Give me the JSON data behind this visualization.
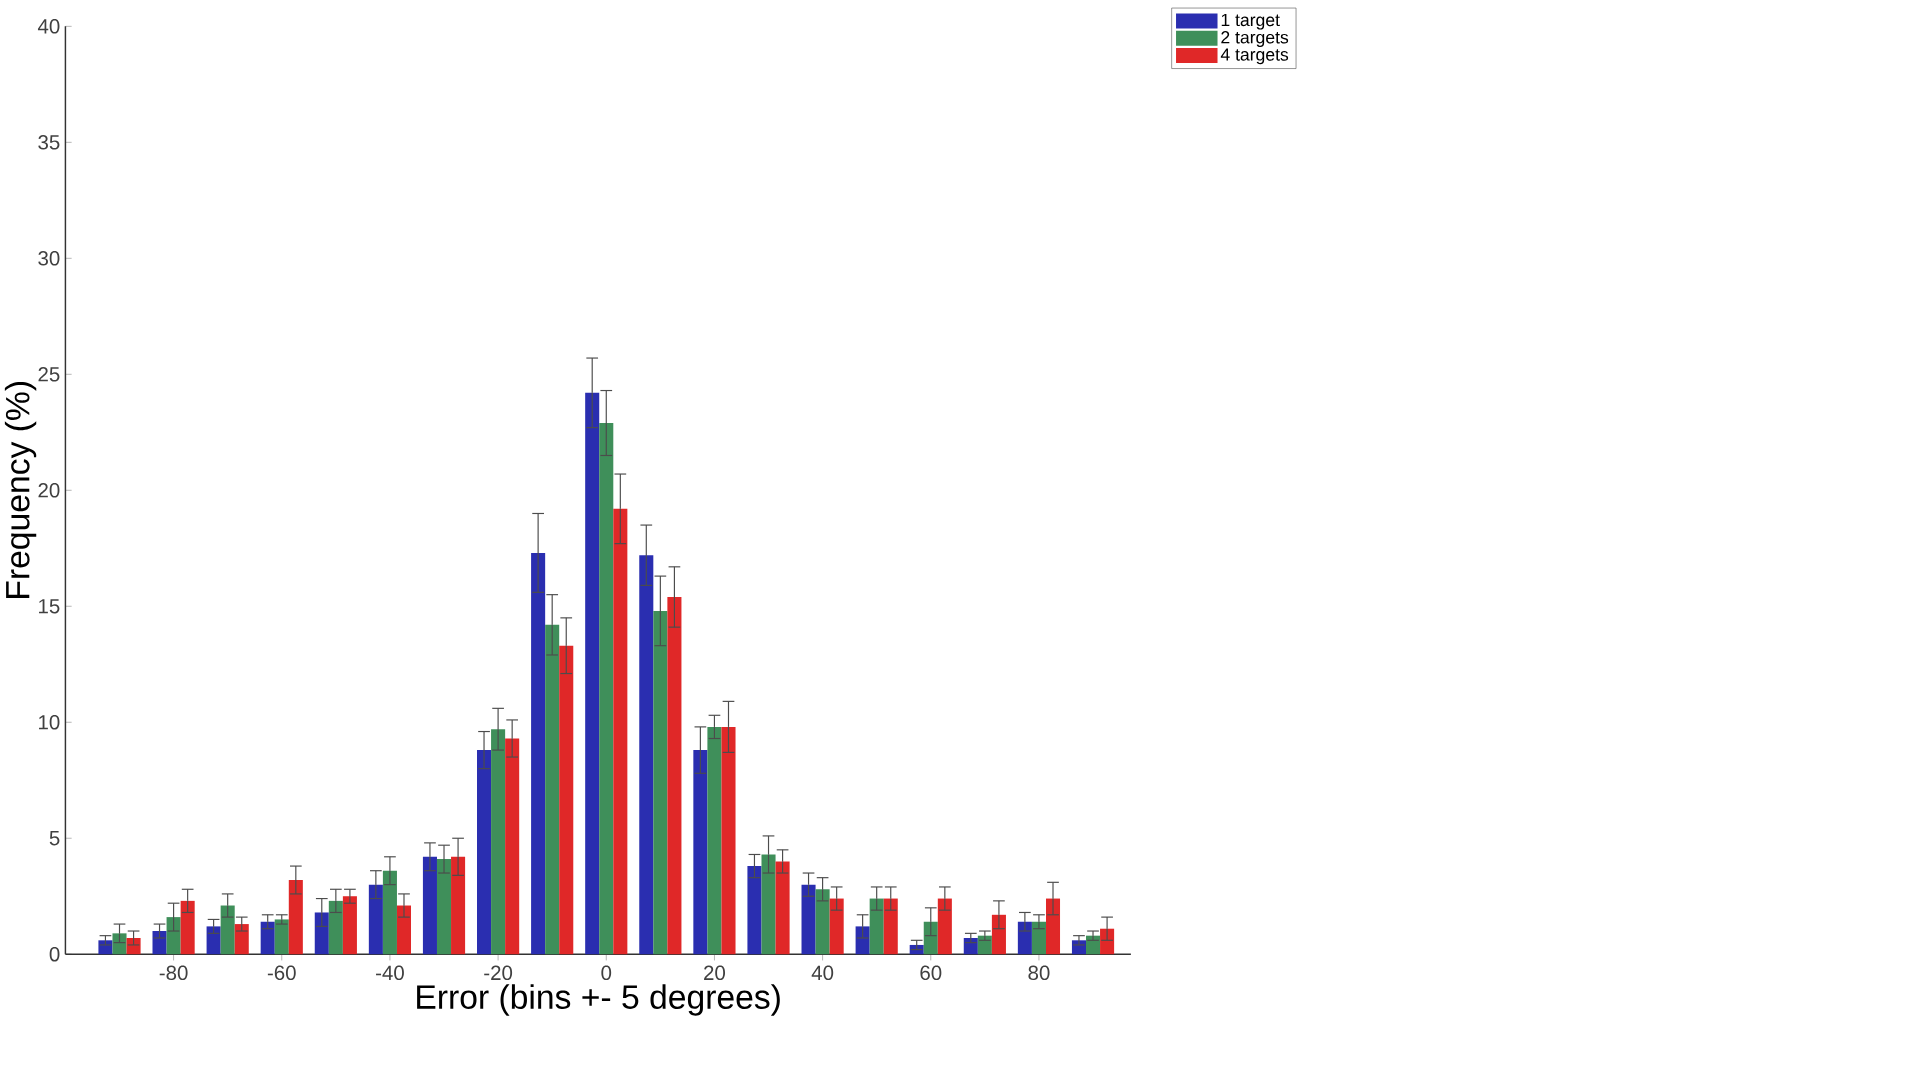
{
  "chart_data": {
    "type": "bar",
    "xlabel": "Error (bins +- 5 degrees)",
    "ylabel": "Frequency (%)",
    "x": [
      -90,
      -80,
      -70,
      -60,
      -50,
      -40,
      -30,
      -20,
      -10,
      0,
      10,
      20,
      30,
      40,
      50,
      60,
      70,
      80,
      90
    ],
    "xlim": [
      -100,
      97
    ],
    "xticks": [
      -80,
      -60,
      -40,
      -20,
      0,
      20,
      40,
      60,
      80
    ],
    "ylim": [
      0,
      40
    ],
    "yticks": [
      0,
      5,
      10,
      15,
      20,
      25,
      30,
      35,
      40
    ],
    "legend": "top right",
    "series": [
      {
        "name": "1 target",
        "color": "#2a2eb0",
        "values": [
          0.6,
          1.0,
          1.2,
          1.4,
          1.8,
          3.0,
          4.2,
          8.8,
          17.3,
          24.2,
          17.2,
          8.8,
          3.8,
          3.0,
          1.2,
          0.4,
          0.7,
          1.4,
          0.6
        ],
        "errors": [
          0.2,
          0.3,
          0.3,
          0.3,
          0.6,
          0.6,
          0.6,
          0.8,
          1.7,
          1.5,
          1.3,
          1.0,
          0.5,
          0.5,
          0.5,
          0.2,
          0.2,
          0.4,
          0.2
        ]
      },
      {
        "name": "2 targets",
        "color": "#3f8f5a",
        "values": [
          0.9,
          1.6,
          2.1,
          1.5,
          2.3,
          3.6,
          4.1,
          9.7,
          14.2,
          22.9,
          14.8,
          9.8,
          4.3,
          2.8,
          2.4,
          1.4,
          0.8,
          1.4,
          0.8
        ],
        "errors": [
          0.4,
          0.6,
          0.5,
          0.2,
          0.5,
          0.6,
          0.6,
          0.9,
          1.3,
          1.4,
          1.5,
          0.5,
          0.8,
          0.5,
          0.5,
          0.6,
          0.2,
          0.3,
          0.2
        ]
      },
      {
        "name": "4 targets",
        "color": "#e02828",
        "values": [
          0.7,
          2.3,
          1.3,
          3.2,
          2.5,
          2.1,
          4.2,
          9.3,
          13.3,
          19.2,
          15.4,
          9.8,
          4.0,
          2.4,
          2.4,
          2.4,
          1.7,
          2.4,
          1.1
        ],
        "errors": [
          0.3,
          0.5,
          0.3,
          0.6,
          0.3,
          0.5,
          0.8,
          0.8,
          1.2,
          1.5,
          1.3,
          1.1,
          0.5,
          0.5,
          0.5,
          0.5,
          0.6,
          0.7,
          0.5
        ]
      }
    ]
  }
}
